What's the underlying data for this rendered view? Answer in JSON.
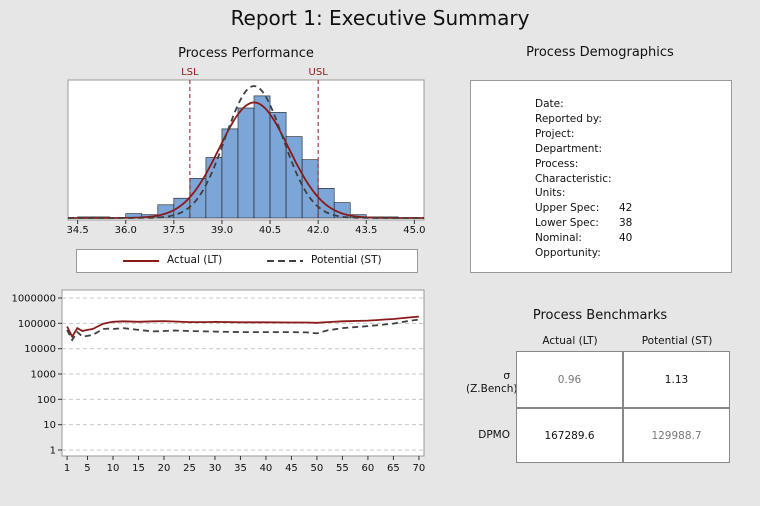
{
  "report_title": "Report 1: Executive Summary",
  "performance_title": "Process Performance",
  "demographics_title": "Process Demographics",
  "benchmarks_title": "Process Benchmarks",
  "demographics": [
    {
      "label": "Date:",
      "value": ""
    },
    {
      "label": "Reported by:",
      "value": ""
    },
    {
      "label": "Project:",
      "value": ""
    },
    {
      "label": "Department:",
      "value": ""
    },
    {
      "label": "Process:",
      "value": ""
    },
    {
      "label": "Characteristic:",
      "value": ""
    },
    {
      "label": "Units:",
      "value": ""
    },
    {
      "label": "Upper Spec:",
      "value": "42"
    },
    {
      "label": "Lower Spec:",
      "value": "38"
    },
    {
      "label": "Nominal:",
      "value": "40"
    },
    {
      "label": "Opportunity:",
      "value": ""
    }
  ],
  "legend": {
    "actual": "Actual (LT)",
    "potential": "Potential (ST)"
  },
  "benchmarks": {
    "columns": [
      "Actual (LT)",
      "Potential (ST)"
    ],
    "rows": [
      {
        "label_line1": "σ",
        "label_line2": "(Z.Bench)",
        "actual": "0.96",
        "potential": "1.13"
      },
      {
        "label_line1": "DPMO",
        "label_line2": "",
        "actual": "167289.6",
        "potential": "129988.7"
      }
    ]
  },
  "colors": {
    "actual": "#8b1a1a",
    "potential": "#404040",
    "bar_fill": "#7ca6d8",
    "bar_stroke": "#1a1a1a",
    "spec_line": "#8b1a1a",
    "muted_text": "#777777"
  },
  "chart_data": [
    {
      "type": "bar",
      "subtype": "histogram",
      "title": "Process Performance",
      "x_ticks": [
        "34.5",
        "36.0",
        "37.5",
        "39.0",
        "40.5",
        "42.0",
        "43.5",
        "45.0"
      ],
      "xlim": [
        34.2,
        45.3
      ],
      "bin_width": 0.5,
      "bins": [
        {
          "x0": 34.5,
          "count": 1
        },
        {
          "x0": 35.0,
          "count": 1
        },
        {
          "x0": 35.5,
          "count": 0
        },
        {
          "x0": 36.0,
          "count": 4
        },
        {
          "x0": 36.5,
          "count": 3
        },
        {
          "x0": 37.0,
          "count": 12
        },
        {
          "x0": 37.5,
          "count": 18
        },
        {
          "x0": 38.0,
          "count": 36
        },
        {
          "x0": 38.5,
          "count": 55
        },
        {
          "x0": 39.0,
          "count": 81
        },
        {
          "x0": 39.5,
          "count": 100
        },
        {
          "x0": 40.0,
          "count": 111
        },
        {
          "x0": 40.5,
          "count": 96
        },
        {
          "x0": 41.0,
          "count": 74
        },
        {
          "x0": 41.5,
          "count": 53
        },
        {
          "x0": 42.0,
          "count": 27
        },
        {
          "x0": 42.5,
          "count": 14
        },
        {
          "x0": 43.0,
          "count": 3
        },
        {
          "x0": 43.5,
          "count": 1
        },
        {
          "x0": 44.0,
          "count": 1
        },
        {
          "x0": 44.5,
          "count": 0
        }
      ],
      "ymax": 120,
      "spec_lines": [
        {
          "label": "LSL",
          "x": 38
        },
        {
          "label": "USL",
          "x": 42
        }
      ],
      "curves": [
        {
          "name": "Actual (LT)",
          "mean": 40.0,
          "sd": 1.08,
          "peak": 105
        },
        {
          "name": "Potential (ST)",
          "mean": 40.0,
          "sd": 0.9,
          "peak": 120
        }
      ]
    },
    {
      "type": "line",
      "y_scale": "log",
      "ylim": [
        1,
        1000000
      ],
      "y_ticks": [
        "1",
        "10",
        "100",
        "1000",
        "10000",
        "100000",
        "1000000"
      ],
      "x_ticks": [
        "1",
        "5",
        "10",
        "15",
        "20",
        "25",
        "30",
        "35",
        "40",
        "45",
        "50",
        "55",
        "60",
        "65",
        "70"
      ],
      "xlim": [
        0,
        71
      ],
      "grid": true,
      "x": [
        1,
        2,
        3,
        4,
        5,
        6,
        7,
        8,
        9,
        10,
        12,
        15,
        18,
        20,
        22,
        25,
        28,
        30,
        35,
        40,
        45,
        48,
        50,
        52,
        55,
        60,
        65,
        68,
        70
      ],
      "series": [
        {
          "name": "Actual (LT)",
          "values": [
            75000,
            30000,
            65000,
            50000,
            55000,
            60000,
            75000,
            95000,
            105000,
            115000,
            120000,
            115000,
            120000,
            122000,
            118000,
            112000,
            112000,
            114000,
            110000,
            110000,
            108000,
            108000,
            105000,
            112000,
            120000,
            128000,
            148000,
            170000,
            185000
          ]
        },
        {
          "name": "Potential (ST)",
          "values": [
            55000,
            22000,
            45000,
            30000,
            32000,
            35000,
            45000,
            60000,
            62000,
            60000,
            65000,
            55000,
            48000,
            50000,
            52000,
            50000,
            48000,
            47000,
            45000,
            45000,
            45000,
            44000,
            40000,
            52000,
            65000,
            78000,
            98000,
            125000,
            140000
          ]
        }
      ]
    }
  ]
}
